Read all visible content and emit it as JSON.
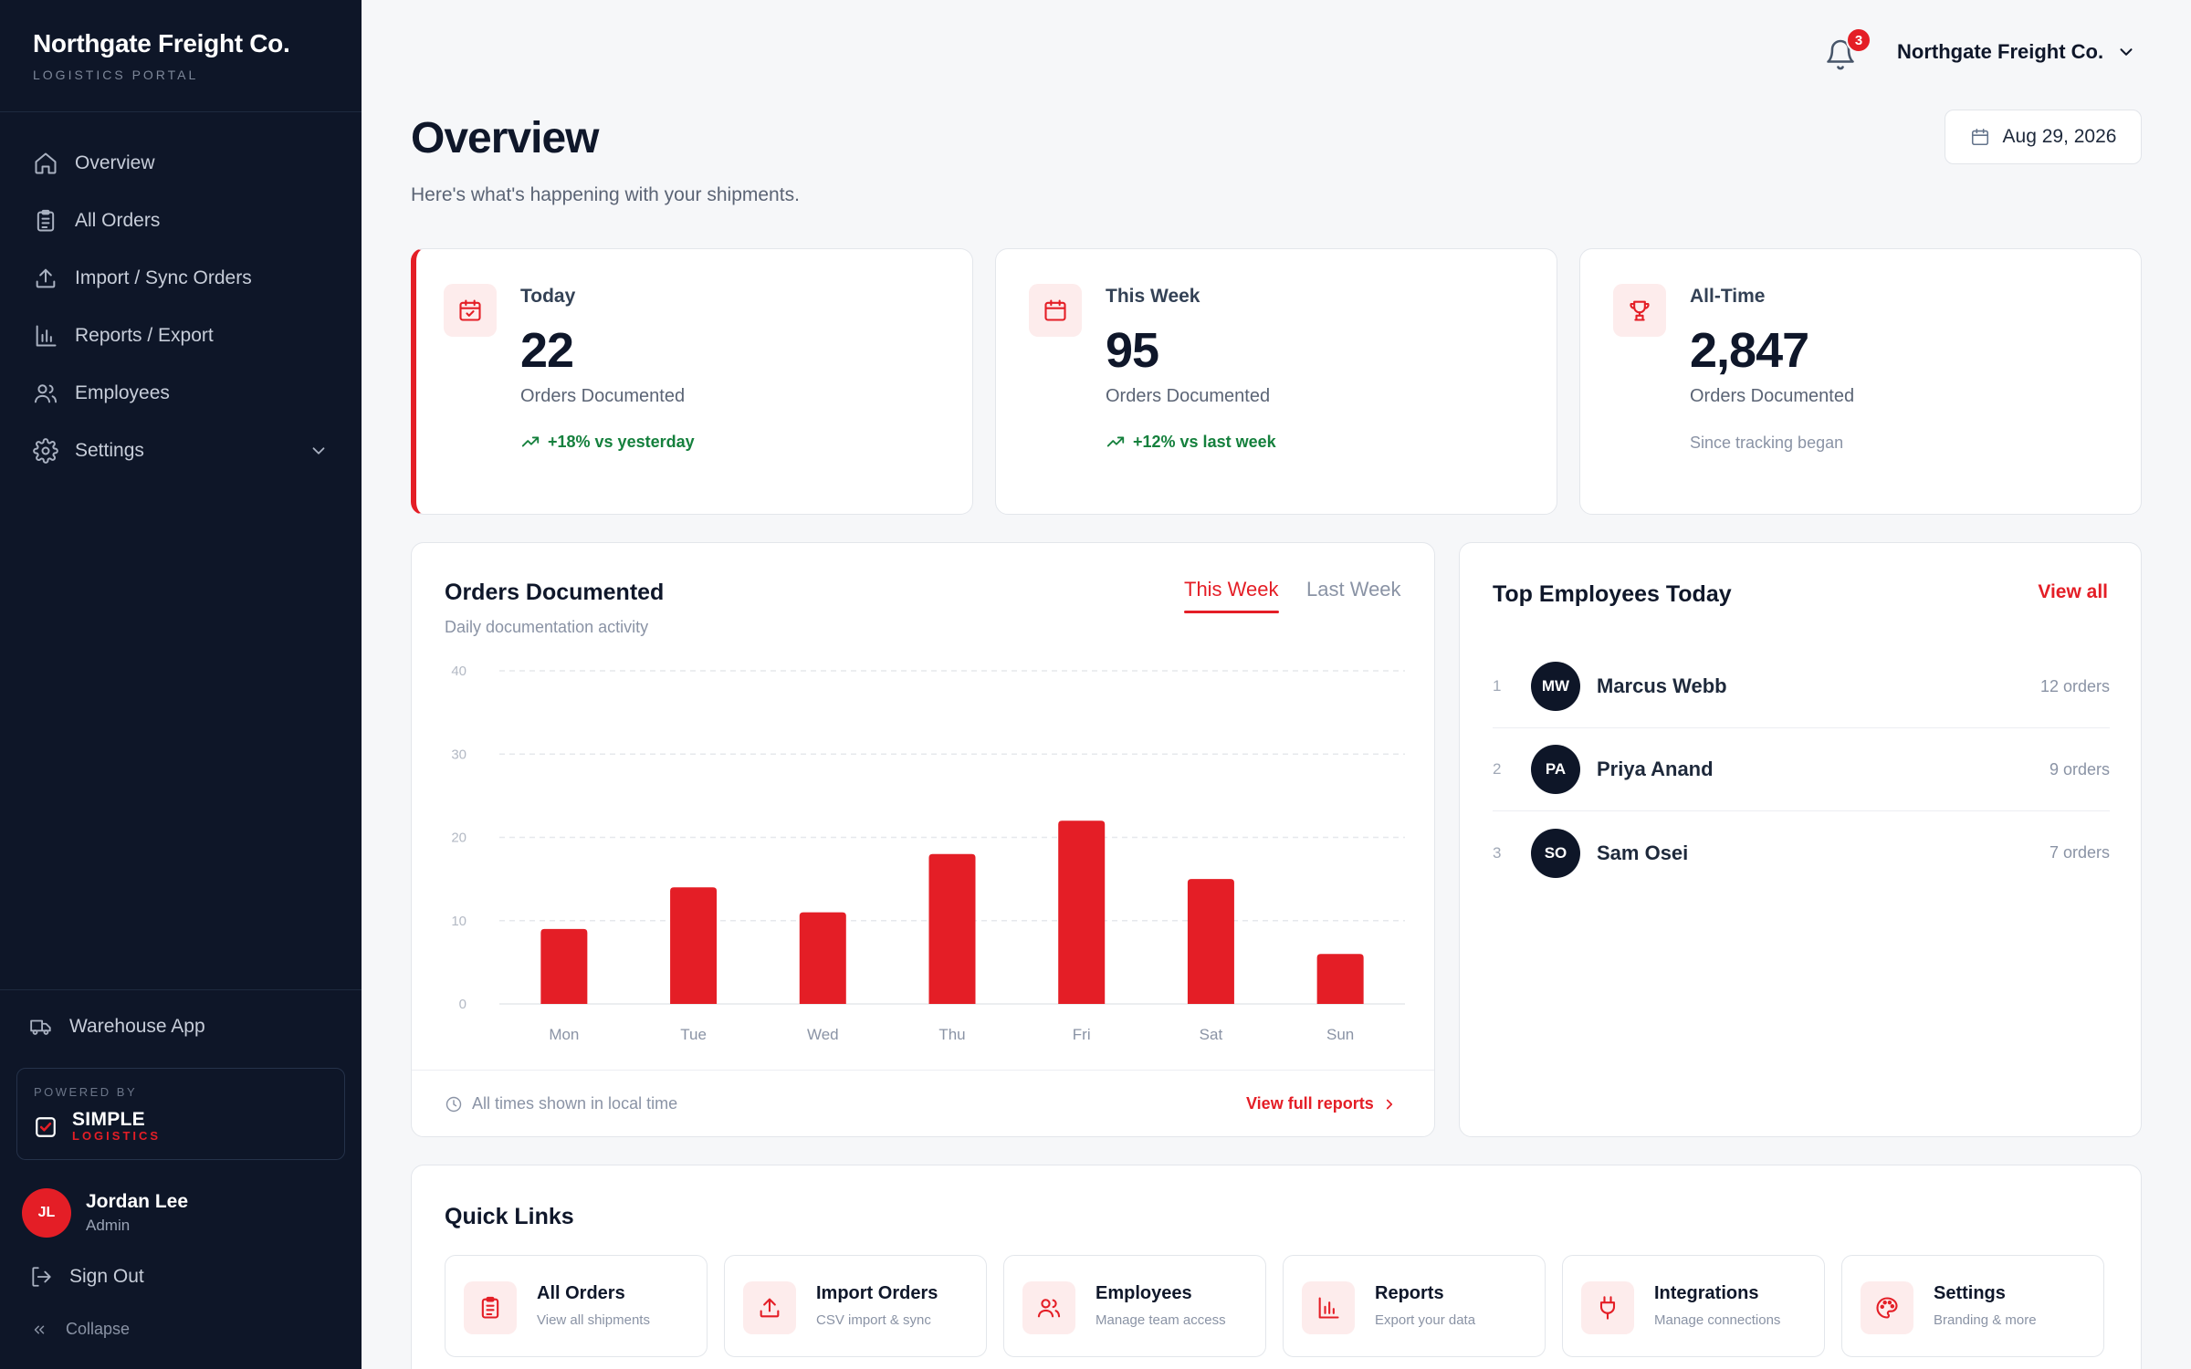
{
  "brand": {
    "name": "Northgate Freight Co.",
    "subtitle": "LOGISTICS PORTAL"
  },
  "nav": [
    {
      "label": "Overview",
      "icon": "home-icon"
    },
    {
      "label": "All Orders",
      "icon": "clipboard-icon"
    },
    {
      "label": "Import / Sync Orders",
      "icon": "upload-icon"
    },
    {
      "label": "Reports / Export",
      "icon": "bar-chart-icon"
    },
    {
      "label": "Employees",
      "icon": "users-icon"
    },
    {
      "label": "Settings",
      "icon": "gear-icon"
    }
  ],
  "sidebar_footer": {
    "warehouse_app": "Warehouse App",
    "powered_by": "POWERED BY",
    "logo_simple": "SIMPLE",
    "logo_logistics": "LOGISTICS",
    "user": {
      "initials": "JL",
      "name": "Jordan Lee",
      "role": "Admin"
    },
    "sign_out": "Sign Out",
    "collapse": "Collapse"
  },
  "topbar": {
    "notification_count": "3",
    "company": "Northgate Freight Co."
  },
  "header": {
    "title": "Overview",
    "subtitle": "Here's what's happening with your shipments.",
    "date": "Aug 29, 2026"
  },
  "stats": [
    {
      "label": "Today",
      "value": "22",
      "caption": "Orders Documented",
      "trend": "+18% vs yesterday",
      "icon": "calendar-check-icon"
    },
    {
      "label": "This Week",
      "value": "95",
      "caption": "Orders Documented",
      "trend": "+12% vs last week",
      "icon": "calendar-icon"
    },
    {
      "label": "All-Time",
      "value": "2,847",
      "caption": "Orders Documented",
      "note": "Since tracking began",
      "icon": "trophy-icon"
    }
  ],
  "chart_card": {
    "title": "Orders Documented",
    "subtitle": "Daily documentation activity",
    "tab_active": "This Week",
    "tab_inactive": "Last Week",
    "footer_note": "All times shown in local time",
    "footer_link": "View full reports"
  },
  "chart_data": {
    "type": "bar",
    "categories": [
      "Mon",
      "Tue",
      "Wed",
      "Thu",
      "Fri",
      "Sat",
      "Sun"
    ],
    "values": [
      9,
      14,
      11,
      18,
      22,
      15,
      6
    ],
    "yticks": [
      0,
      10,
      20,
      30,
      40
    ],
    "ylim": [
      0,
      40
    ],
    "grid": true,
    "bar_color": "#e41e26"
  },
  "employees": {
    "title": "Top Employees Today",
    "view_all": "View all",
    "rows": [
      {
        "rank": "1",
        "initials": "MW",
        "name": "Marcus Webb",
        "orders": "12 orders"
      },
      {
        "rank": "2",
        "initials": "PA",
        "name": "Priya Anand",
        "orders": "9 orders"
      },
      {
        "rank": "3",
        "initials": "SO",
        "name": "Sam Osei",
        "orders": "7 orders"
      }
    ]
  },
  "quick_links": {
    "title": "Quick Links",
    "items": [
      {
        "label": "All Orders",
        "desc": "View all shipments",
        "icon": "clipboard-icon"
      },
      {
        "label": "Import Orders",
        "desc": "CSV import & sync",
        "icon": "upload-icon"
      },
      {
        "label": "Employees",
        "desc": "Manage team access",
        "icon": "users-icon"
      },
      {
        "label": "Reports",
        "desc": "Export your data",
        "icon": "bar-chart-icon"
      },
      {
        "label": "Integrations",
        "desc": "Manage connections",
        "icon": "plug-icon"
      },
      {
        "label": "Settings",
        "desc": "Branding & more",
        "icon": "palette-icon"
      }
    ]
  },
  "colors": {
    "accent": "#e41e26",
    "sidebar": "#0e1628",
    "positive": "#15803d"
  }
}
